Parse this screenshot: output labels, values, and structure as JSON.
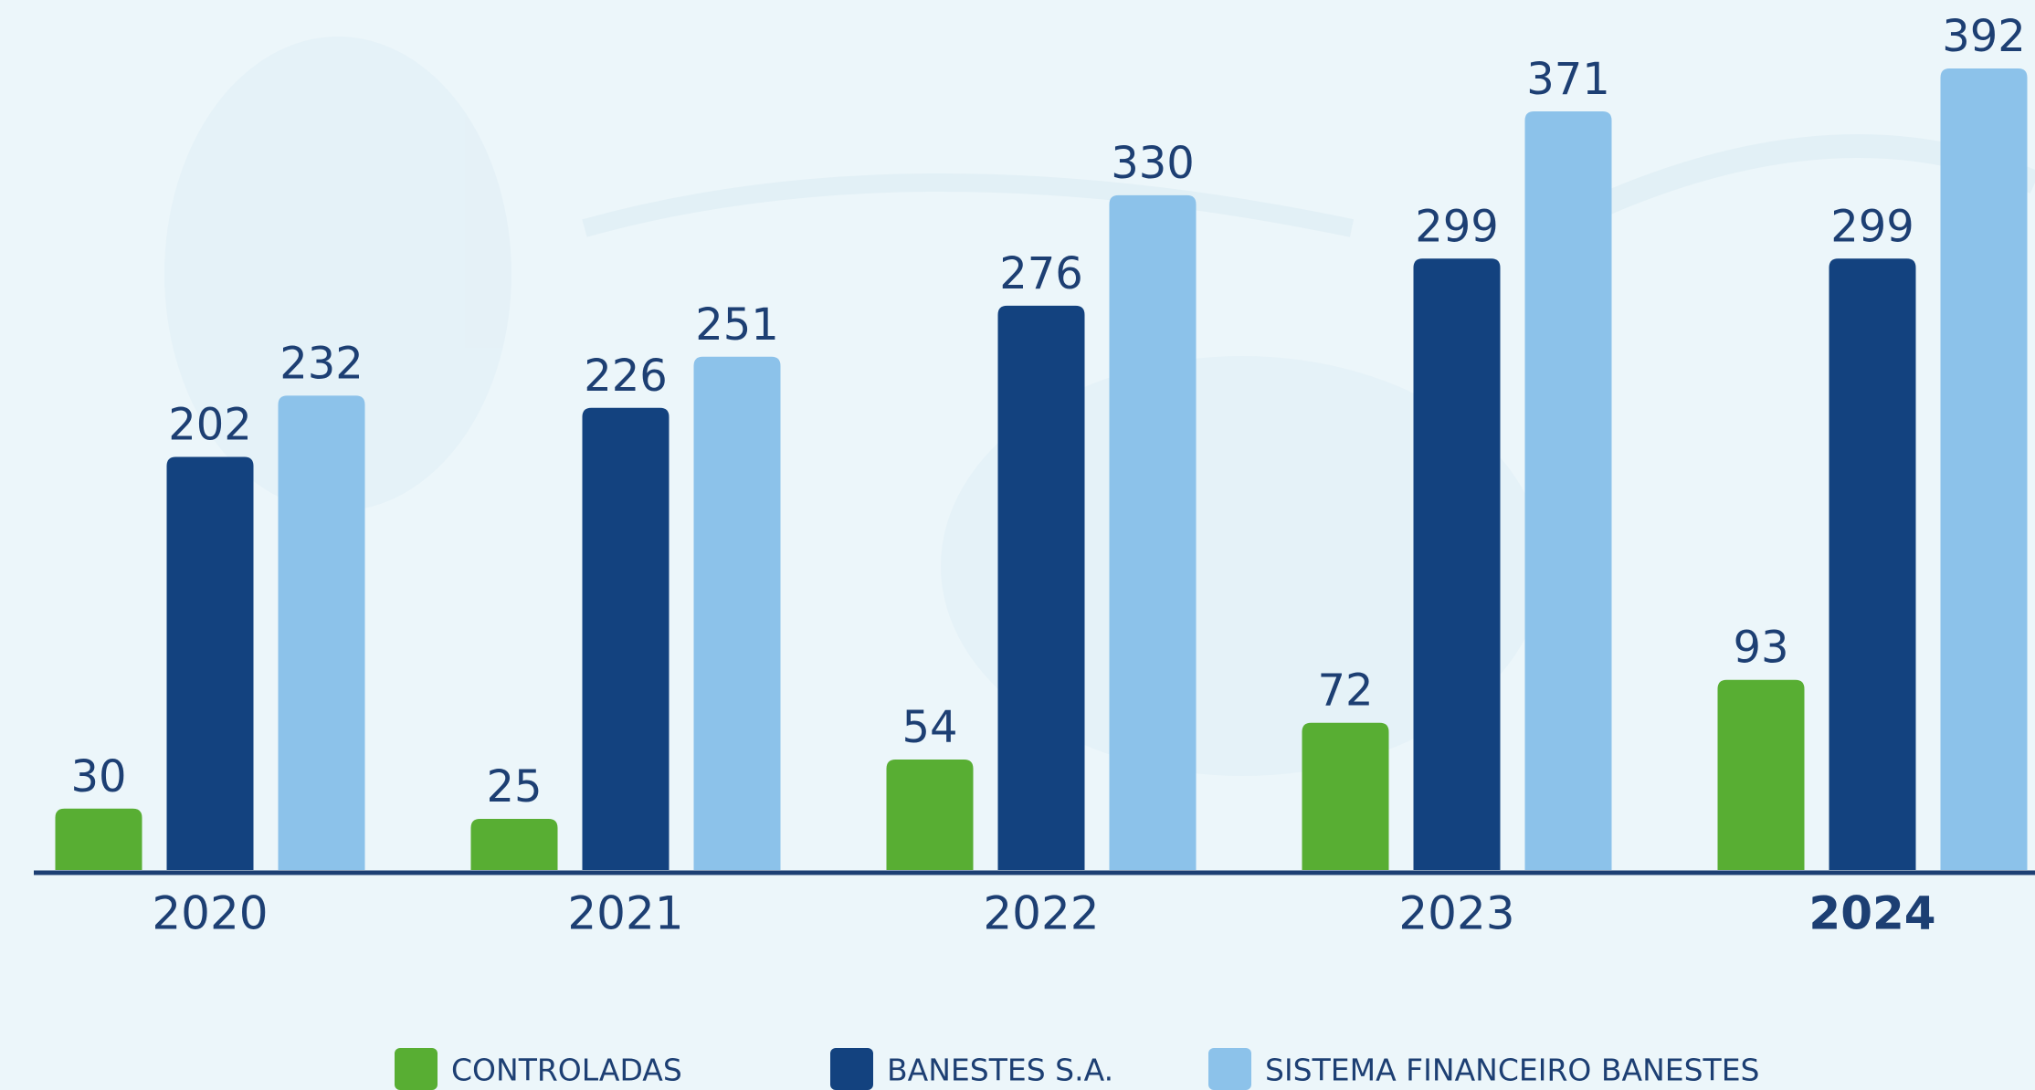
{
  "chart_data": {
    "type": "bar",
    "categories": [
      "2020",
      "2021",
      "2022",
      "2023",
      "2024"
    ],
    "series": [
      {
        "name": "CONTROLADAS",
        "color": "#58ae33",
        "values": [
          30,
          25,
          54,
          72,
          93
        ]
      },
      {
        "name": "BANESTES S.A.",
        "color": "#13427f",
        "values": [
          202,
          226,
          276,
          299,
          299
        ]
      },
      {
        "name": "SISTEMA FINANCEIRO BANESTES",
        "color": "#8cc2ea",
        "values": [
          232,
          251,
          330,
          371,
          392
        ]
      }
    ]
  }
}
